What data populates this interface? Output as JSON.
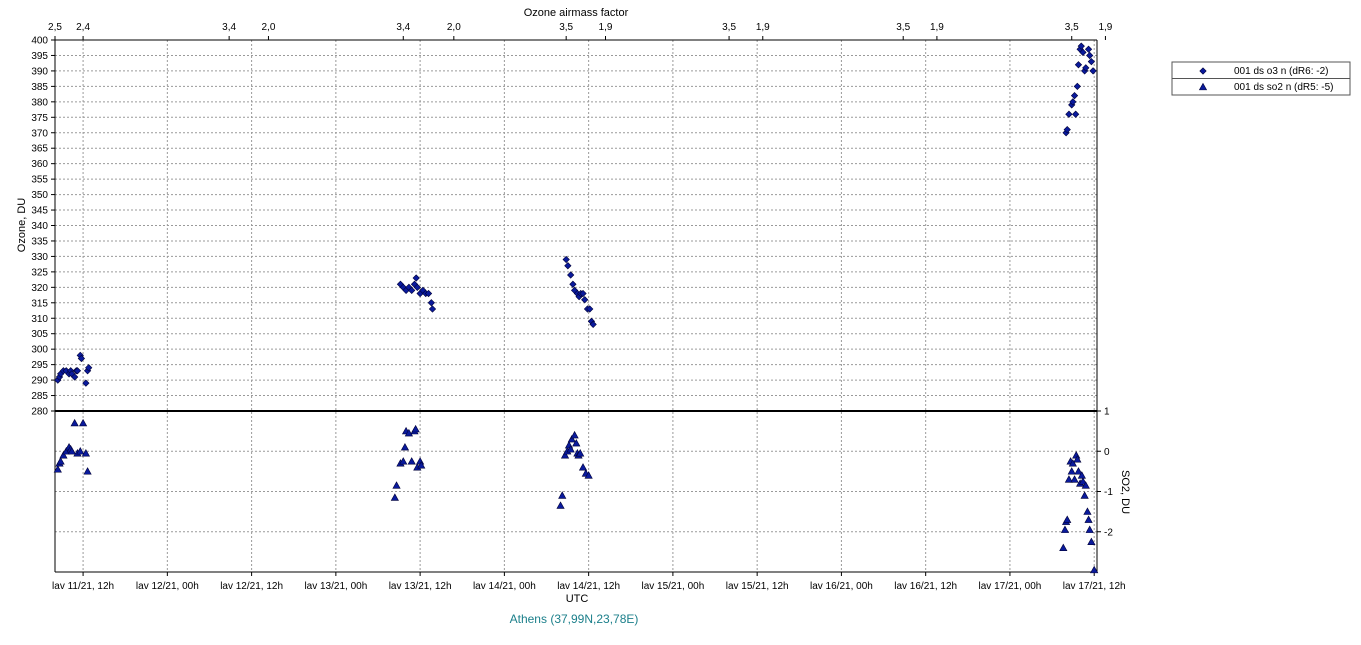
{
  "chart_data": {
    "type": "scatter",
    "top_axis": {
      "label": "Ozone airmass factor",
      "ticks": [
        {
          "label": "2,5",
          "x": 0.0
        },
        {
          "label": "2,4",
          "x": 0.5
        },
        {
          "label": "3,4",
          "x": 3.1
        },
        {
          "label": "2,0",
          "x": 3.8
        },
        {
          "label": "3,4",
          "x": 6.2
        },
        {
          "label": "2,0",
          "x": 7.1
        },
        {
          "label": "3,5",
          "x": 9.1
        },
        {
          "label": "1,9",
          "x": 9.8
        },
        {
          "label": "3,5",
          "x": 12.0
        },
        {
          "label": "1,9",
          "x": 12.6
        },
        {
          "label": "3,5",
          "x": 15.1
        },
        {
          "label": "1,9",
          "x": 15.7
        },
        {
          "label": "3,5",
          "x": 18.1
        },
        {
          "label": "1,9",
          "x": 18.7
        }
      ]
    },
    "xlabel": "UTC",
    "x_ticks": [
      {
        "label": "lav 11/21, 12h",
        "x": 0.5
      },
      {
        "label": "lav 12/21, 00h",
        "x": 2
      },
      {
        "label": "lav 12/21, 12h",
        "x": 3.5
      },
      {
        "label": "lav 13/21, 00h",
        "x": 5
      },
      {
        "label": "lav 13/21, 12h",
        "x": 6.5
      },
      {
        "label": "lav 14/21, 00h",
        "x": 8
      },
      {
        "label": "lav 14/21, 12h",
        "x": 9.5
      },
      {
        "label": "lav 15/21, 00h",
        "x": 11
      },
      {
        "label": "lav 15/21, 12h",
        "x": 12.5
      },
      {
        "label": "lav 16/21, 00h",
        "x": 14
      },
      {
        "label": "lav 16/21, 12h",
        "x": 15.5
      },
      {
        "label": "lav 17/21, 00h",
        "x": 17
      },
      {
        "label": "lav 17/21, 12h",
        "x": 18.5
      }
    ],
    "x_range": [
      0,
      18.55
    ],
    "ylabel": "Ozone, DU",
    "ylim": [
      280,
      400
    ],
    "y_ticks": [
      280,
      285,
      290,
      295,
      300,
      305,
      310,
      315,
      320,
      325,
      330,
      335,
      340,
      345,
      350,
      355,
      360,
      365,
      370,
      375,
      380,
      385,
      390,
      395,
      400
    ],
    "y2label": "SO2, DU",
    "y2lim": [
      -3,
      1
    ],
    "y2_ticks": [
      1,
      0,
      -1,
      -2
    ],
    "grid": true,
    "location": "Athens (37,99N,23,78E)",
    "legend_position": "right",
    "series": [
      {
        "name": "001 ds o3  n (dR6: -2)",
        "axis": "ozone",
        "marker": "diamond",
        "color": "#0a1a9c",
        "points": [
          [
            0.05,
            290
          ],
          [
            0.08,
            291
          ],
          [
            0.1,
            292
          ],
          [
            0.15,
            293
          ],
          [
            0.2,
            293
          ],
          [
            0.25,
            292
          ],
          [
            0.28,
            293
          ],
          [
            0.3,
            292
          ],
          [
            0.35,
            291
          ],
          [
            0.38,
            293
          ],
          [
            0.4,
            293
          ],
          [
            0.45,
            298
          ],
          [
            0.47,
            297
          ],
          [
            0.55,
            289
          ],
          [
            0.58,
            293
          ],
          [
            0.6,
            294
          ],
          [
            6.15,
            321
          ],
          [
            6.2,
            320
          ],
          [
            6.25,
            319
          ],
          [
            6.3,
            320
          ],
          [
            6.35,
            319
          ],
          [
            6.4,
            321
          ],
          [
            6.43,
            323
          ],
          [
            6.45,
            320
          ],
          [
            6.5,
            318
          ],
          [
            6.55,
            319
          ],
          [
            6.6,
            318
          ],
          [
            6.65,
            318
          ],
          [
            6.7,
            315
          ],
          [
            6.72,
            313
          ],
          [
            9.1,
            329
          ],
          [
            9.13,
            327
          ],
          [
            9.18,
            324
          ],
          [
            9.22,
            321
          ],
          [
            9.25,
            319
          ],
          [
            9.3,
            318
          ],
          [
            9.33,
            317
          ],
          [
            9.36,
            318
          ],
          [
            9.4,
            318
          ],
          [
            9.43,
            316
          ],
          [
            9.48,
            313
          ],
          [
            9.52,
            313
          ],
          [
            9.55,
            309
          ],
          [
            9.58,
            308
          ],
          [
            18.0,
            370
          ],
          [
            18.02,
            371
          ],
          [
            18.05,
            376
          ],
          [
            18.1,
            379
          ],
          [
            18.12,
            380
          ],
          [
            18.15,
            382
          ],
          [
            18.17,
            376
          ],
          [
            18.2,
            385
          ],
          [
            18.22,
            392
          ],
          [
            18.25,
            397
          ],
          [
            18.27,
            398
          ],
          [
            18.3,
            396
          ],
          [
            18.33,
            390
          ],
          [
            18.35,
            391
          ],
          [
            18.4,
            397
          ],
          [
            18.42,
            395
          ],
          [
            18.45,
            393
          ],
          [
            18.48,
            390
          ]
        ]
      },
      {
        "name": "001 ds so2 n (dR5: -5)",
        "axis": "so2",
        "marker": "triangle",
        "color": "#0a1a9c",
        "points": [
          [
            0.05,
            -0.45
          ],
          [
            0.08,
            -0.3
          ],
          [
            0.1,
            -0.25
          ],
          [
            0.15,
            -0.1
          ],
          [
            0.2,
            0.0
          ],
          [
            0.25,
            0.1
          ],
          [
            0.28,
            0.05
          ],
          [
            0.3,
            0.0
          ],
          [
            0.35,
            0.7
          ],
          [
            0.4,
            -0.05
          ],
          [
            0.45,
            0.0
          ],
          [
            0.5,
            0.7
          ],
          [
            0.55,
            -0.05
          ],
          [
            0.58,
            -0.5
          ],
          [
            6.05,
            -1.15
          ],
          [
            6.08,
            -0.85
          ],
          [
            6.15,
            -0.3
          ],
          [
            6.2,
            -0.25
          ],
          [
            6.23,
            0.1
          ],
          [
            6.25,
            0.5
          ],
          [
            6.3,
            0.45
          ],
          [
            6.35,
            -0.25
          ],
          [
            6.4,
            0.5
          ],
          [
            6.42,
            0.55
          ],
          [
            6.45,
            -0.4
          ],
          [
            6.5,
            -0.25
          ],
          [
            6.52,
            -0.35
          ],
          [
            9.0,
            -1.35
          ],
          [
            9.03,
            -1.1
          ],
          [
            9.08,
            -0.1
          ],
          [
            9.12,
            0.0
          ],
          [
            9.15,
            0.15
          ],
          [
            9.18,
            0.05
          ],
          [
            9.2,
            0.3
          ],
          [
            9.25,
            0.4
          ],
          [
            9.28,
            0.2
          ],
          [
            9.3,
            -0.05
          ],
          [
            9.32,
            -0.1
          ],
          [
            9.35,
            -0.05
          ],
          [
            9.4,
            -0.4
          ],
          [
            9.45,
            -0.55
          ],
          [
            9.5,
            -0.6
          ],
          [
            17.95,
            -2.4
          ],
          [
            17.98,
            -1.95
          ],
          [
            18.0,
            -1.75
          ],
          [
            18.02,
            -1.7
          ],
          [
            18.05,
            -0.7
          ],
          [
            18.08,
            -0.25
          ],
          [
            18.1,
            -0.5
          ],
          [
            18.12,
            -0.3
          ],
          [
            18.15,
            -0.7
          ],
          [
            18.18,
            -0.1
          ],
          [
            18.2,
            -0.2
          ],
          [
            18.22,
            -0.5
          ],
          [
            18.25,
            -0.8
          ],
          [
            18.28,
            -0.6
          ],
          [
            18.3,
            -0.75
          ],
          [
            18.33,
            -1.1
          ],
          [
            18.35,
            -0.85
          ],
          [
            18.38,
            -1.5
          ],
          [
            18.4,
            -1.7
          ],
          [
            18.42,
            -1.95
          ],
          [
            18.45,
            -2.25
          ],
          [
            18.5,
            -2.95
          ]
        ]
      }
    ]
  }
}
